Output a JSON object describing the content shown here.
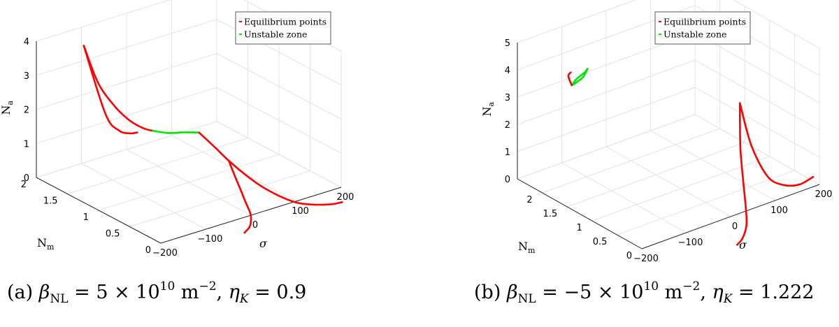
{
  "colors": {
    "equilibrium": "#ff0000",
    "unstable": "#00e600",
    "grid": "#e3e3e3",
    "axis": "#222222"
  },
  "chart_data": [
    {
      "type": "line3d",
      "id": "a",
      "caption": {
        "prefix": "(a) ",
        "beta": "β",
        "beta_sub": "NL",
        "beta_eq": " = 5 × 10",
        "beta_exp": "10",
        "unit": " m",
        "unit_exp": "−2",
        "sep": ", ",
        "eta": "η",
        "eta_sub": "K",
        "eta_eq": " = 0.9"
      },
      "xlabel": "σ",
      "ylabel": "N",
      "ylabel_sub": "m",
      "zlabel": "N",
      "zlabel_sub": "a",
      "xlim": [
        -200,
        200
      ],
      "ylim": [
        0,
        2
      ],
      "zlim": [
        0,
        4
      ],
      "xticks": [
        "−200",
        "−100",
        "0",
        "100",
        "200"
      ],
      "yticks": [
        "0",
        "0.5",
        "1",
        "1.5",
        "2"
      ],
      "zticks": [
        "0",
        "1",
        "2",
        "3",
        "4"
      ],
      "legend": {
        "position": "top-right",
        "entries": [
          "Equilibrium points",
          "Unstable zone"
        ]
      },
      "series": [
        {
          "name": "Equilibrium points",
          "role": "equilibrium",
          "points": [
            [
              -150,
              1.6,
              4.05
            ],
            [
              -125,
              1.55,
              2.9
            ],
            [
              -100,
              1.47,
              2.2
            ],
            [
              -80,
              1.4,
              1.8
            ],
            [
              -65,
              1.36,
              1.6
            ],
            [
              -50,
              1.33,
              1.45
            ],
            [
              -38,
              1.3,
              1.38
            ]
          ]
        },
        {
          "name": "Unstable zone",
          "role": "unstable",
          "points": [
            [
              -38,
              1.3,
              1.38
            ],
            [
              -18,
              1.2,
              1.33
            ],
            [
              0,
              1.12,
              1.35
            ],
            [
              12,
              1.04,
              1.38
            ],
            [
              20,
              0.98,
              1.4
            ]
          ]
        },
        {
          "name": "Equilibrium points",
          "role": "equilibrium",
          "points": [
            [
              20,
              0.98,
              1.4
            ],
            [
              35,
              0.85,
              1.06
            ],
            [
              50,
              0.72,
              0.7
            ],
            [
              65,
              0.56,
              0.38
            ],
            [
              80,
              0.4,
              0.12
            ],
            [
              95,
              0.22,
              -0.05
            ],
            [
              110,
              0.08,
              -0.15
            ],
            [
              130,
              -0.02,
              -0.2
            ],
            [
              160,
              -0.12,
              -0.22
            ],
            [
              180,
              -0.16,
              -0.2
            ]
          ]
        },
        {
          "name": "Equilibrium points",
          "role": "equilibrium",
          "points": [
            [
              -150,
              1.6,
              4.05
            ],
            [
              -120,
              1.47,
              2.05
            ],
            [
              -100,
              1.4,
              1.55
            ],
            [
              -80,
              1.36,
              1.42
            ],
            [
              -66,
              1.35,
              1.4
            ]
          ]
        },
        {
          "name": "Equilibrium points",
          "role": "equilibrium",
          "points": [
            [
              50,
              0.72,
              0.7
            ],
            [
              45,
              0.58,
              0.38
            ],
            [
              40,
              0.45,
              0.12
            ],
            [
              30,
              0.3,
              -0.05
            ],
            [
              15,
              0.12,
              -0.12
            ],
            [
              0,
              0.0,
              -0.15
            ],
            [
              -20,
              -0.12,
              -0.15
            ],
            [
              -45,
              -0.22,
              -0.12
            ]
          ]
        }
      ]
    },
    {
      "type": "line3d",
      "id": "b",
      "caption": {
        "prefix": "(b) ",
        "beta": "β",
        "beta_sub": "NL",
        "beta_eq": " = −5 × 10",
        "beta_exp": "10",
        "unit": " m",
        "unit_exp": "−2",
        "sep": ", ",
        "eta": "η",
        "eta_sub": "K",
        "eta_eq": " = 1.222"
      },
      "xlabel": "σ",
      "ylabel": "N",
      "ylabel_sub": "m",
      "zlabel": "N",
      "zlabel_sub": "a",
      "xlim": [
        -200,
        200
      ],
      "ylim": [
        0,
        2.5
      ],
      "zlim": [
        0,
        5
      ],
      "xticks": [
        "−200",
        "−100",
        "0",
        "100",
        "200"
      ],
      "yticks": [
        "0",
        "0.5",
        "1",
        "1.5",
        "2"
      ],
      "zticks": [
        "0",
        "1",
        "2",
        "3",
        "4",
        "5"
      ],
      "legend": {
        "position": "top-right",
        "entries": [
          "Equilibrium points",
          "Unstable zone"
        ]
      },
      "series": [
        {
          "name": "Equilibrium points",
          "role": "equilibrium",
          "points": [
            [
              60,
              0.35,
              3.45
            ],
            [
              50,
              0.25,
              2.0
            ],
            [
              45,
              0.15,
              0.9
            ],
            [
              40,
              0.05,
              0.0
            ],
            [
              30,
              -0.05,
              -0.45
            ],
            [
              10,
              -0.15,
              -0.7
            ],
            [
              -10,
              -0.22,
              -0.75
            ]
          ]
        },
        {
          "name": "Equilibrium points",
          "role": "equilibrium",
          "points": [
            [
              60,
              0.35,
              3.45
            ],
            [
              75,
              0.25,
              1.9
            ],
            [
              95,
              0.1,
              0.8
            ],
            [
              120,
              0.0,
              0.45
            ],
            [
              150,
              -0.05,
              0.35
            ],
            [
              180,
              -0.05,
              0.45
            ]
          ]
        },
        {
          "name": "Unstable zone",
          "role": "unstable",
          "points": [
            [
              -100,
              2.3,
              3.05
            ],
            [
              -95,
              2.25,
              3.3
            ],
            [
              -88,
              2.15,
              3.6
            ],
            [
              -85,
              2.12,
              3.75
            ],
            [
              -88,
              2.18,
              3.4
            ],
            [
              -92,
              2.25,
              3.2
            ],
            [
              -97,
              2.3,
              3.05
            ]
          ]
        },
        {
          "name": "Equilibrium points",
          "role": "equilibrium",
          "points": [
            [
              -100,
              2.3,
              3.05
            ],
            [
              -102,
              2.35,
              3.35
            ],
            [
              -100,
              2.32,
              3.5
            ]
          ]
        }
      ]
    }
  ]
}
